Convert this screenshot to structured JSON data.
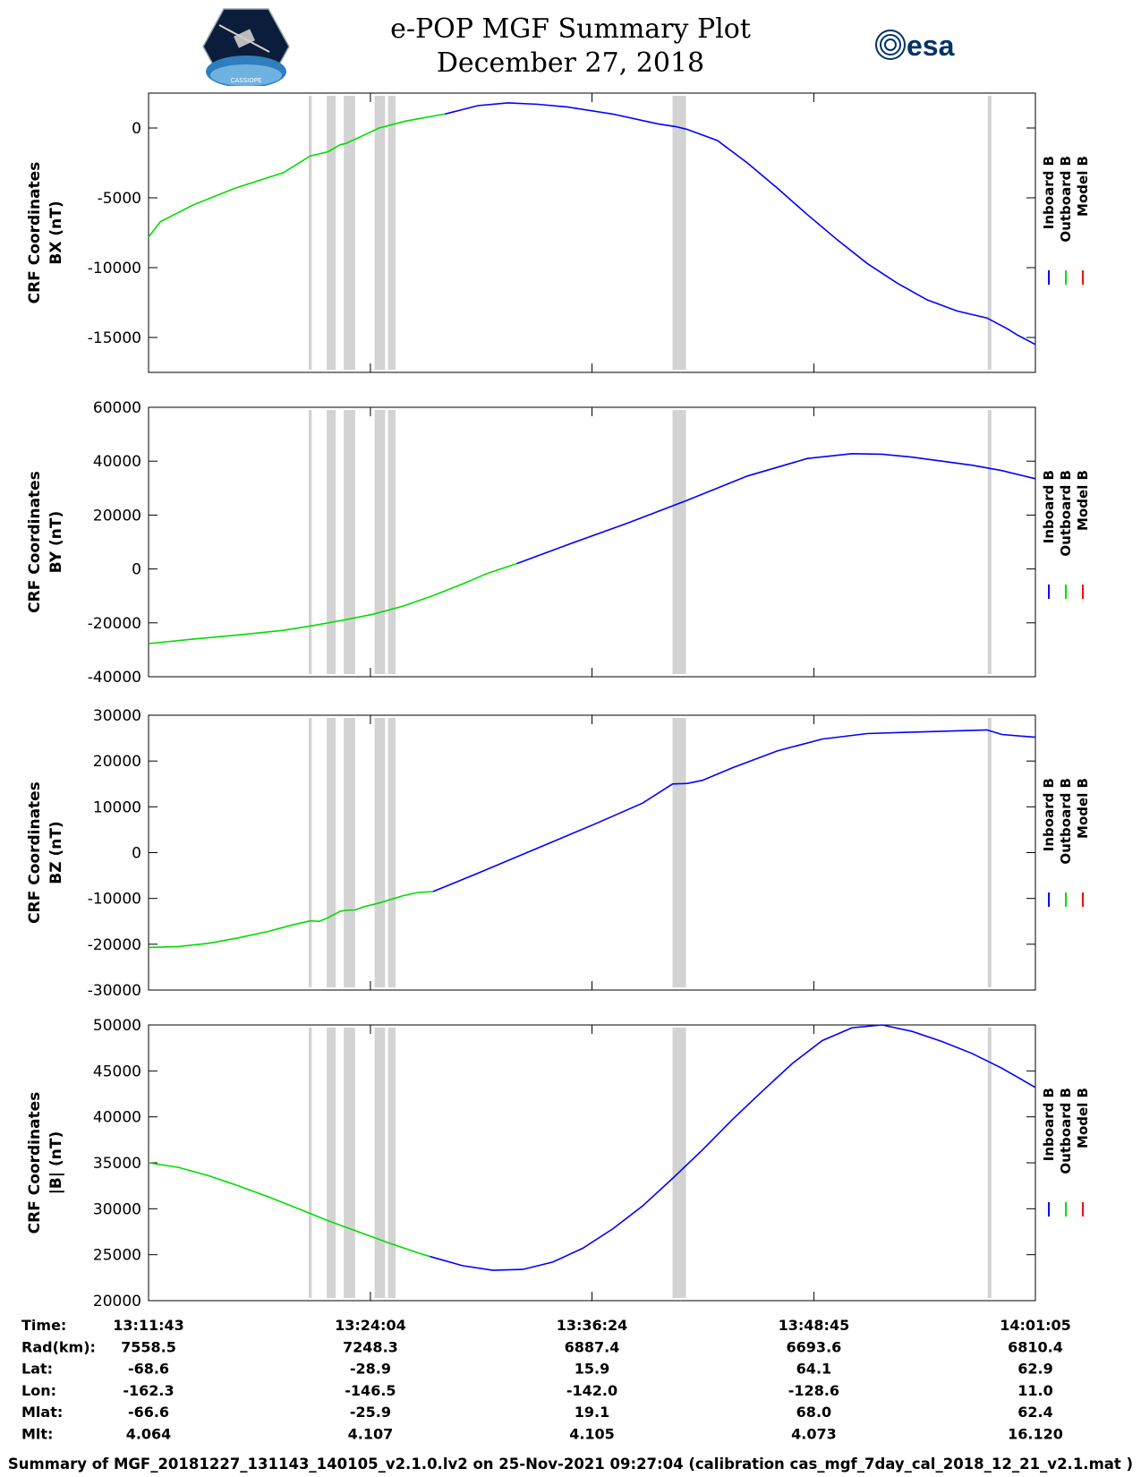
{
  "header": {
    "title_line1": "e-POP MGF Summary Plot",
    "title_line2": "December 27, 2018",
    "mission_logo_text": "CASSIOPE",
    "agency_logo_text": "esa"
  },
  "colors": {
    "inboard": "#0000ff",
    "outboard": "#00dd00",
    "model": "#ff0000",
    "gap": "#d3d3d3"
  },
  "chart_data": [
    {
      "type": "line",
      "id": "bx",
      "ylabel": [
        "CRF Coordinates",
        "BX (nT)"
      ],
      "ylim": [
        -17500,
        2500
      ],
      "yticks": [
        0,
        -5000,
        -10000,
        -15000
      ],
      "xlim_seconds": [
        0,
        2962
      ],
      "legend": [
        "Inboard B",
        "Outboard B",
        "Model B"
      ],
      "series": [
        {
          "name": "Outboard B",
          "x": [
            0,
            40,
            150,
            290,
            450,
            540,
            600,
            640,
            660,
            670,
            690,
            720,
            770,
            860,
            990
          ],
          "y": [
            -7800,
            -6700,
            -5500,
            -4300,
            -3200,
            -2000,
            -1700,
            -1200,
            -1100,
            -1000,
            -800,
            -500,
            0,
            500,
            1000
          ]
        },
        {
          "name": "Inboard B",
          "x": [
            990,
            1100,
            1200,
            1300,
            1400,
            1550,
            1700,
            1760,
            1800,
            1900,
            2000,
            2100,
            2200,
            2300,
            2400,
            2500,
            2600,
            2700,
            2800,
            2870,
            2900,
            2962
          ],
          "y": [
            1000,
            1600,
            1800,
            1700,
            1500,
            1000,
            300,
            100,
            -100,
            -900,
            -2500,
            -4300,
            -6200,
            -8000,
            -9700,
            -11100,
            -12300,
            -13100,
            -13600,
            -14400,
            -14800,
            -15500
          ]
        }
      ],
      "gaps_seconds": [
        [
          535,
          545
        ],
        [
          595,
          625
        ],
        [
          652,
          690
        ],
        [
          755,
          790
        ],
        [
          800,
          825
        ],
        [
          1750,
          1795
        ],
        [
          2803,
          2815
        ]
      ]
    },
    {
      "type": "line",
      "id": "by",
      "ylabel": [
        "CRF Coordinates",
        "BY (nT)"
      ],
      "ylim": [
        -40000,
        60000
      ],
      "yticks": [
        60000,
        40000,
        20000,
        0,
        -20000,
        -40000
      ],
      "xlim_seconds": [
        0,
        2962
      ],
      "legend": [
        "Inboard B",
        "Outboard B",
        "Model B"
      ],
      "series": [
        {
          "name": "Outboard B",
          "x": [
            0,
            150,
            300,
            450,
            550,
            650,
            750,
            850,
            950,
            1050,
            1130,
            1230
          ],
          "y": [
            -27700,
            -26000,
            -24500,
            -22800,
            -21000,
            -19000,
            -16800,
            -13800,
            -9900,
            -5500,
            -1700,
            2000
          ]
        },
        {
          "name": "Inboard B",
          "x": [
            1230,
            1400,
            1600,
            1800,
            2000,
            2200,
            2350,
            2450,
            2550,
            2650,
            2750,
            2850,
            2962
          ],
          "y": [
            2000,
            9000,
            17000,
            25500,
            34500,
            41000,
            42800,
            42600,
            41500,
            40000,
            38500,
            36500,
            33500
          ]
        }
      ],
      "gaps_seconds": [
        [
          535,
          545
        ],
        [
          595,
          625
        ],
        [
          652,
          690
        ],
        [
          755,
          790
        ],
        [
          800,
          825
        ],
        [
          1750,
          1795
        ],
        [
          2803,
          2815
        ]
      ]
    },
    {
      "type": "line",
      "id": "bz",
      "ylabel": [
        "CRF Coordinates",
        "BZ (nT)"
      ],
      "ylim": [
        -30000,
        30000
      ],
      "yticks": [
        30000,
        20000,
        10000,
        0,
        -10000,
        -20000,
        -30000
      ],
      "xlim_seconds": [
        0,
        2962
      ],
      "legend": [
        "Inboard B",
        "Outboard B",
        "Model B"
      ],
      "series": [
        {
          "name": "Outboard B",
          "x": [
            0,
            100,
            200,
            300,
            400,
            480,
            540,
            570,
            600,
            640,
            660,
            690,
            720,
            770,
            850,
            900,
            950
          ],
          "y": [
            -20700,
            -20500,
            -19800,
            -18600,
            -17200,
            -15800,
            -14900,
            -15000,
            -14200,
            -12800,
            -12600,
            -12500,
            -11800,
            -11000,
            -9400,
            -8700,
            -8500
          ]
        },
        {
          "name": "Inboard B",
          "x": [
            950,
            1100,
            1300,
            1500,
            1650,
            1750,
            1800,
            1850,
            1950,
            2100,
            2250,
            2400,
            2550,
            2700,
            2800,
            2850,
            2962
          ],
          "y": [
            -8500,
            -4500,
            1000,
            6500,
            10800,
            15000,
            15100,
            15800,
            18500,
            22200,
            24800,
            26000,
            26300,
            26600,
            26800,
            25800,
            25200
          ]
        }
      ],
      "gaps_seconds": [
        [
          535,
          545
        ],
        [
          595,
          625
        ],
        [
          652,
          690
        ],
        [
          755,
          790
        ],
        [
          800,
          825
        ],
        [
          1750,
          1795
        ],
        [
          2803,
          2815
        ]
      ]
    },
    {
      "type": "line",
      "id": "bmag",
      "ylabel": [
        "CRF Coordinates",
        "|B| (nT)"
      ],
      "ylim": [
        20000,
        50000
      ],
      "yticks": [
        50000,
        45000,
        40000,
        35000,
        30000,
        25000,
        20000
      ],
      "xlim_seconds": [
        0,
        2962
      ],
      "legend": [
        "Inboard B",
        "Outboard B",
        "Model B"
      ],
      "series": [
        {
          "name": "Outboard B",
          "x": [
            0,
            100,
            200,
            300,
            400,
            500,
            600,
            700,
            800,
            900,
            940
          ],
          "y": [
            35000,
            34500,
            33600,
            32500,
            31300,
            30000,
            28700,
            27500,
            26300,
            25200,
            24800
          ]
        },
        {
          "name": "Inboard B",
          "x": [
            940,
            1050,
            1150,
            1250,
            1350,
            1450,
            1550,
            1650,
            1750,
            1850,
            1950,
            2050,
            2150,
            2250,
            2350,
            2450,
            2550,
            2650,
            2750,
            2850,
            2962
          ],
          "y": [
            24800,
            23800,
            23300,
            23400,
            24200,
            25700,
            27800,
            30300,
            33300,
            36400,
            39700,
            42800,
            45800,
            48300,
            49700,
            50000,
            49300,
            48200,
            46900,
            45300,
            43200
          ]
        }
      ],
      "gaps_seconds": [
        [
          535,
          545
        ],
        [
          595,
          625
        ],
        [
          652,
          690
        ],
        [
          755,
          790
        ],
        [
          800,
          825
        ],
        [
          1750,
          1795
        ],
        [
          2803,
          2815
        ]
      ]
    }
  ],
  "xticks_seconds": [
    0,
    741,
    1481,
    2222,
    2962
  ],
  "info_table": {
    "labels": [
      "Time:",
      "Rad(km):",
      "Lat:",
      "Lon:",
      "Mlat:",
      "Mlt:"
    ],
    "columns": [
      [
        "13:11:43",
        "7558.5",
        "-68.6",
        "-162.3",
        "-66.6",
        "4.064"
      ],
      [
        "13:24:04",
        "7248.3",
        "-28.9",
        "-146.5",
        "-25.9",
        "4.107"
      ],
      [
        "13:36:24",
        "6887.4",
        "15.9",
        "-142.0",
        "19.1",
        "4.105"
      ],
      [
        "13:48:45",
        "6693.6",
        "64.1",
        "-128.6",
        "68.0",
        "4.073"
      ],
      [
        "14:01:05",
        "6810.4",
        "62.9",
        "11.0",
        "62.4",
        "16.120"
      ]
    ]
  },
  "footer": "Summary of MGF_20181227_131143_140105_v2.1.0.lv2 on 25-Nov-2021 09:27:04 (calibration cas_mgf_7day_cal_2018_12_21_v2.1.mat )"
}
